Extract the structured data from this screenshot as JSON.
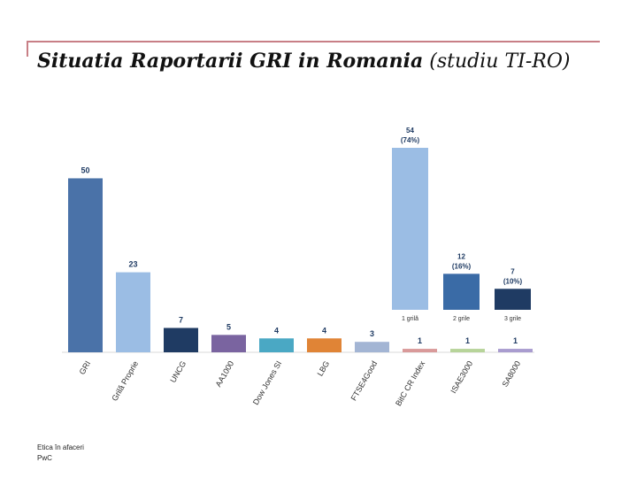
{
  "slide": {
    "title_main": "Situatia Raportarii GRI in Romania",
    "title_sub": "(studiu TI-RO)",
    "footer_line1": "Etica în afaceri",
    "footer_line2": "PwC"
  },
  "chart_data": [
    {
      "type": "bar",
      "title": "",
      "xlabel": "",
      "ylabel": "",
      "ylim": [
        0,
        58
      ],
      "grid": false,
      "categories": [
        "GRI",
        "Grilă Proprie",
        "UNCG",
        "AA1000",
        "Dow Jones SI",
        "LBG",
        "FTSE4Good",
        "BitC CR Index",
        "ISAE3000",
        "SA8000"
      ],
      "values": [
        50,
        23,
        7,
        5,
        4,
        4,
        3,
        1,
        1,
        1
      ],
      "data_labels": [
        "50",
        "23",
        "7",
        "5",
        "4",
        "4",
        "3",
        "1",
        "1",
        "1"
      ],
      "colors": [
        "#4a72a8",
        "#9bbde4",
        "#1f3b63",
        "#7a64a0",
        "#4aa8c4",
        "#e08436",
        "#a3b5d4",
        "#d99a9a",
        "#b7d49a",
        "#a99ccf"
      ]
    },
    {
      "type": "bar",
      "title": "",
      "xlabel": "",
      "ylabel": "",
      "ylim": [
        0,
        58
      ],
      "grid": false,
      "categories": [
        "1 grilă",
        "2 grile",
        "3 grile"
      ],
      "values": [
        54,
        12,
        7
      ],
      "data_labels": [
        "54",
        "12",
        "7"
      ],
      "percent_labels": [
        "(74%)",
        "(16%)",
        "(10%)"
      ],
      "colors": [
        "#9bbde4",
        "#3a6ba6",
        "#1f3b63"
      ]
    }
  ]
}
